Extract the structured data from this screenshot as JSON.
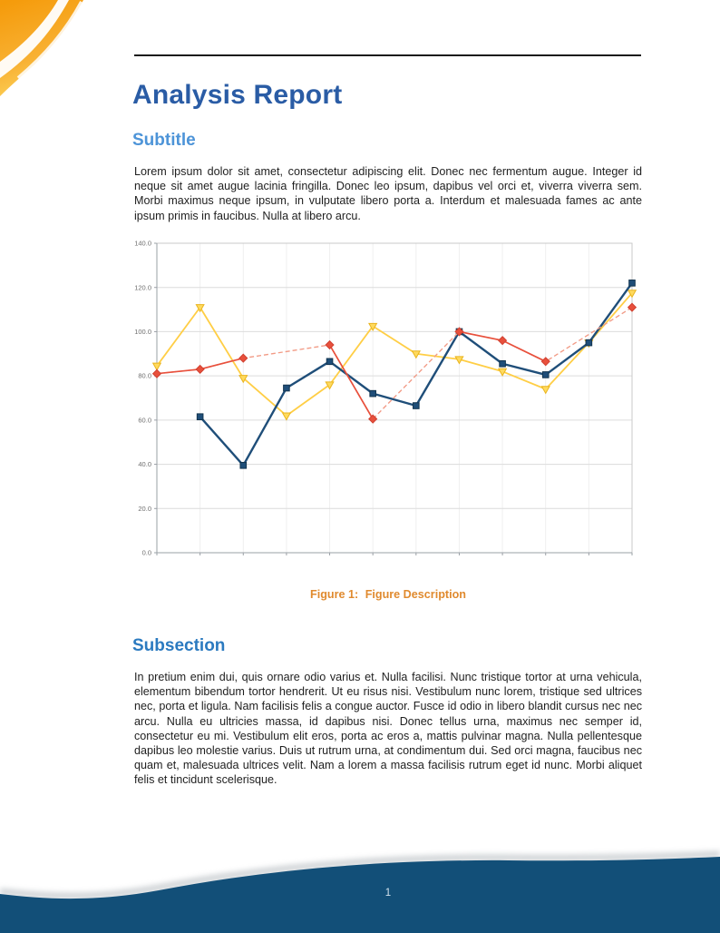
{
  "header": {
    "title": "Analysis Report"
  },
  "subtitle_section": {
    "heading": "Subtitle",
    "body": "Lorem ipsum dolor sit amet, consectetur adipiscing elit. Donec nec fermentum augue. Integer id neque sit amet augue lacinia fringilla. Donec leo ipsum, dapibus vel orci et, viverra viverra sem. Morbi maximus neque ipsum, in vulputate libero porta a. Interdum et malesuada fames ac ante ipsum primis in faucibus. Nulla at libero arcu."
  },
  "figure": {
    "caption_label": "Figure 1:",
    "caption_text": "Figure Description"
  },
  "subsection": {
    "heading": "Subsection",
    "body": "In pretium enim dui, quis ornare odio varius et. Nulla facilisi. Nunc tristique tortor at urna vehicula, elementum bibendum tortor hendrerit. Ut eu risus nisi. Vestibulum nunc lorem, tristique sed ultrices nec, porta et ligula. Nam facilisis felis a congue auctor. Fusce id odio in libero blandit cursus nec nec arcu. Nulla eu ultricies massa, id dapibus nisi. Donec tellus urna, maximus nec semper id, consectetur eu mi. Vestibulum elit eros, porta ac eros a, mattis pulvinar magna. Nulla pellentesque dapibus leo molestie varius. Duis ut rutrum urna, at condimentum dui. Sed orci magna, faucibus nec quam et, malesuada ultrices velit. Nam a lorem a massa facilisis rutrum eget id nunc. Morbi aliquet felis et tincidunt scelerisque."
  },
  "footer": {
    "page_number": "1"
  },
  "colors": {
    "title_blue": "#2A5CA5",
    "subtitle_blue": "#4D94D8",
    "subsection_blue": "#2B7AC0",
    "caption_orange": "#E08A2E",
    "footer_wave_blue": "#124F78",
    "corner_swoosh_orange": "#F59B0B"
  },
  "chart_data": {
    "type": "line",
    "title": "",
    "xlabel": "",
    "ylabel": "",
    "x": [
      1,
      2,
      3,
      4,
      5,
      6,
      7,
      8,
      9,
      10,
      11,
      12
    ],
    "x_tick_labels_visible": false,
    "ylim": [
      0,
      140
    ],
    "yticks": [
      0,
      20,
      40,
      60,
      80,
      100,
      120,
      140
    ],
    "ytick_format": "one_decimal",
    "grid": true,
    "legend_position": "none",
    "series": [
      {
        "name": "yellow-series",
        "values": [
          84.5,
          111,
          79,
          62,
          76,
          102.5,
          90,
          87.5,
          82,
          74,
          95,
          117.5
        ],
        "color": "#FFCE45",
        "line_width": 1.8,
        "line_style": "solid",
        "connect_gaps_dashed": false,
        "marker": {
          "shape": "triangle-down",
          "fill": "#FFDA5E",
          "stroke": "#E9B41E"
        }
      },
      {
        "name": "blue-series",
        "values": [
          null,
          61.5,
          39.5,
          74.5,
          86.5,
          72,
          66.5,
          100,
          85.5,
          80.5,
          95,
          122
        ],
        "color": "#1F4E79",
        "line_width": 2.4,
        "line_style": "solid",
        "connect_gaps_dashed": false,
        "marker": {
          "shape": "square",
          "fill": "#1F4E79",
          "stroke": "#12344F"
        }
      },
      {
        "name": "red-series",
        "values": [
          81,
          83,
          88,
          null,
          94,
          60.5,
          null,
          100,
          96,
          86.5,
          null,
          111
        ],
        "color": "#E8503C",
        "line_width": 1.7,
        "line_style": "solid",
        "connect_gaps_dashed": true,
        "gap_dash_color": "#F29A85",
        "marker": {
          "shape": "diamond",
          "fill": "#E8503C",
          "stroke": "#D04030"
        }
      }
    ]
  }
}
